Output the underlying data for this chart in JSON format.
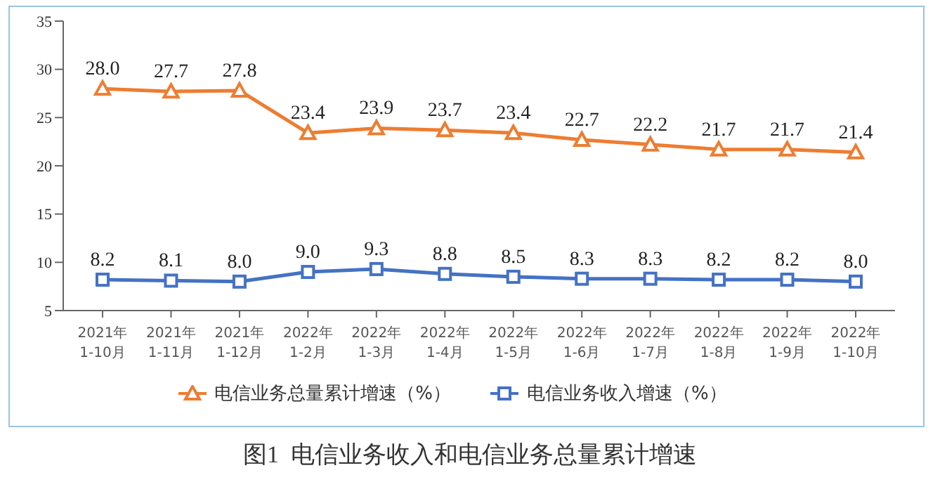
{
  "chart_data": {
    "type": "line",
    "title": "图1  电信业务收入和电信业务总量累计增速",
    "categories": [
      "2021年\n1-10月",
      "2021年\n1-11月",
      "2021年\n1-12月",
      "2022年\n1-2月",
      "2022年\n1-3月",
      "2022年\n1-4月",
      "2022年\n1-5月",
      "2022年\n1-6月",
      "2022年\n1-7月",
      "2022年\n1-8月",
      "2022年\n1-9月",
      "2022年\n1-10月"
    ],
    "series": [
      {
        "name": "电信业务总量累计增速（%）",
        "color": "#ed7d31",
        "marker": "triangle",
        "values": [
          28.0,
          27.7,
          27.8,
          23.4,
          23.9,
          23.7,
          23.4,
          22.7,
          22.2,
          21.7,
          21.7,
          21.4
        ],
        "value_labels": [
          "28.0",
          "27.7",
          "27.8",
          "23.4",
          "23.9",
          "23.7",
          "23.4",
          "22.7",
          "22.2",
          "21.7",
          "21.7",
          "21.4"
        ]
      },
      {
        "name": "电信业务收入增速（%）",
        "color": "#4472c4",
        "marker": "square",
        "values": [
          8.2,
          8.1,
          8.0,
          9.0,
          9.3,
          8.8,
          8.5,
          8.3,
          8.3,
          8.2,
          8.2,
          8.0
        ],
        "value_labels": [
          "8.2",
          "8.1",
          "8.0",
          "9.0",
          "9.3",
          "8.8",
          "8.5",
          "8.3",
          "8.3",
          "8.2",
          "8.2",
          "8.0"
        ]
      }
    ],
    "ylim": [
      5,
      35
    ],
    "yticks": [
      5,
      10,
      15,
      20,
      25,
      30,
      35
    ],
    "grid": false,
    "legend": "bottom"
  }
}
